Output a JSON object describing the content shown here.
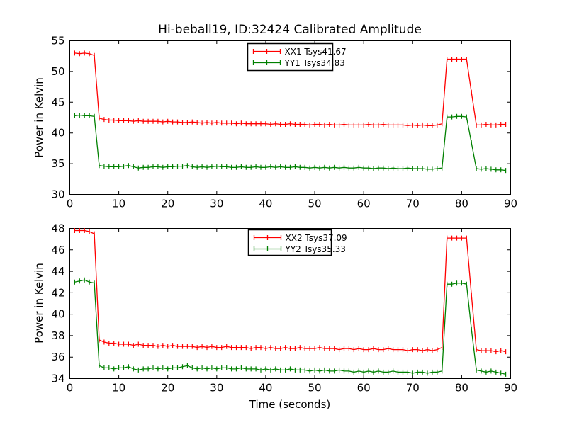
{
  "figure": {
    "title": "Hi-beball19, ID:32424 Calibrated Amplitude",
    "background": "#ffffff"
  },
  "chart_data": [
    {
      "type": "line",
      "title": "Hi-beball19, ID:32424 Calibrated Amplitude",
      "xlabel": "",
      "ylabel": "Power in Kelvin",
      "xlim": [
        0,
        90
      ],
      "ylim": [
        30,
        55
      ],
      "xticks": [
        0,
        10,
        20,
        30,
        40,
        50,
        60,
        70,
        80,
        90
      ],
      "yticks": [
        30,
        35,
        40,
        45,
        50,
        55
      ],
      "grid": false,
      "legend_position": "upper center",
      "marker": "errorbar-tick",
      "x": [
        1,
        2,
        3,
        4,
        5,
        6,
        7,
        8,
        9,
        10,
        11,
        12,
        13,
        14,
        15,
        16,
        17,
        18,
        19,
        20,
        21,
        22,
        23,
        24,
        25,
        26,
        27,
        28,
        29,
        30,
        31,
        32,
        33,
        34,
        35,
        36,
        37,
        38,
        39,
        40,
        41,
        42,
        43,
        44,
        45,
        46,
        47,
        48,
        49,
        50,
        51,
        52,
        53,
        54,
        55,
        56,
        57,
        58,
        59,
        60,
        61,
        62,
        63,
        64,
        65,
        66,
        67,
        68,
        69,
        70,
        71,
        72,
        73,
        74,
        75,
        76,
        77,
        78,
        79,
        80,
        81,
        82,
        83,
        84,
        85,
        86,
        87,
        88,
        89
      ],
      "series": [
        {
          "name": "XX1 Tsys41.67",
          "color": "#ff0000",
          "values": [
            53.0,
            52.9,
            53.0,
            52.9,
            52.6,
            42.4,
            42.2,
            42.1,
            42.1,
            42.0,
            42.0,
            42.0,
            41.9,
            42.0,
            41.9,
            41.9,
            41.9,
            41.9,
            41.8,
            41.9,
            41.8,
            41.8,
            41.7,
            41.7,
            41.8,
            41.7,
            41.6,
            41.7,
            41.6,
            41.7,
            41.6,
            41.6,
            41.6,
            41.5,
            41.6,
            41.5,
            41.5,
            41.5,
            41.5,
            41.5,
            41.4,
            41.5,
            41.4,
            41.4,
            41.5,
            41.4,
            41.4,
            41.4,
            41.3,
            41.4,
            41.4,
            41.3,
            41.4,
            41.3,
            41.3,
            41.4,
            41.3,
            41.3,
            41.3,
            41.3,
            41.4,
            41.3,
            41.3,
            41.4,
            41.3,
            41.3,
            41.3,
            41.3,
            41.2,
            41.3,
            41.2,
            41.3,
            41.2,
            41.2,
            41.3,
            41.5,
            52.0,
            52.0,
            52.0,
            52.0,
            52.0,
            46.6,
            41.3,
            41.3,
            41.4,
            41.3,
            41.3,
            41.4,
            41.4
          ]
        },
        {
          "name": "YY1 Tsys34.83",
          "color": "#008000",
          "values": [
            42.8,
            42.9,
            42.8,
            42.8,
            42.7,
            34.7,
            34.6,
            34.5,
            34.5,
            34.5,
            34.6,
            34.7,
            34.5,
            34.3,
            34.4,
            34.4,
            34.5,
            34.5,
            34.4,
            34.5,
            34.5,
            34.6,
            34.6,
            34.7,
            34.5,
            34.4,
            34.5,
            34.4,
            34.5,
            34.6,
            34.5,
            34.5,
            34.4,
            34.4,
            34.5,
            34.4,
            34.4,
            34.5,
            34.4,
            34.4,
            34.5,
            34.4,
            34.5,
            34.4,
            34.4,
            34.5,
            34.4,
            34.4,
            34.3,
            34.4,
            34.3,
            34.4,
            34.3,
            34.4,
            34.3,
            34.4,
            34.3,
            34.3,
            34.4,
            34.3,
            34.3,
            34.2,
            34.3,
            34.3,
            34.2,
            34.3,
            34.2,
            34.2,
            34.3,
            34.2,
            34.2,
            34.2,
            34.1,
            34.1,
            34.2,
            34.3,
            42.6,
            42.6,
            42.7,
            42.7,
            42.6,
            38.4,
            34.2,
            34.1,
            34.2,
            34.1,
            34.0,
            34.0,
            33.9
          ]
        }
      ]
    },
    {
      "type": "line",
      "title": "",
      "xlabel": "Time (seconds)",
      "ylabel": "Power in Kelvin",
      "xlim": [
        0,
        90
      ],
      "ylim": [
        34,
        48
      ],
      "xticks": [
        0,
        10,
        20,
        30,
        40,
        50,
        60,
        70,
        80,
        90
      ],
      "yticks": [
        34,
        36,
        38,
        40,
        42,
        44,
        46,
        48
      ],
      "grid": false,
      "legend_position": "upper center",
      "marker": "errorbar-tick",
      "x": [
        1,
        2,
        3,
        4,
        5,
        6,
        7,
        8,
        9,
        10,
        11,
        12,
        13,
        14,
        15,
        16,
        17,
        18,
        19,
        20,
        21,
        22,
        23,
        24,
        25,
        26,
        27,
        28,
        29,
        30,
        31,
        32,
        33,
        34,
        35,
        36,
        37,
        38,
        39,
        40,
        41,
        42,
        43,
        44,
        45,
        46,
        47,
        48,
        49,
        50,
        51,
        52,
        53,
        54,
        55,
        56,
        57,
        58,
        59,
        60,
        61,
        62,
        63,
        64,
        65,
        66,
        67,
        68,
        69,
        70,
        71,
        72,
        73,
        74,
        75,
        76,
        77,
        78,
        79,
        80,
        81,
        82,
        83,
        84,
        85,
        86,
        87,
        88,
        89
      ],
      "series": [
        {
          "name": "XX2 Tsys37.09",
          "color": "#ff0000",
          "values": [
            47.8,
            47.8,
            47.8,
            47.7,
            47.5,
            37.6,
            37.4,
            37.3,
            37.3,
            37.2,
            37.2,
            37.2,
            37.1,
            37.2,
            37.1,
            37.1,
            37.1,
            37.0,
            37.1,
            37.0,
            37.1,
            37.0,
            37.0,
            37.0,
            37.0,
            36.9,
            37.0,
            36.9,
            37.0,
            36.9,
            36.9,
            37.0,
            36.9,
            36.9,
            36.9,
            36.9,
            36.8,
            36.9,
            36.9,
            36.8,
            36.9,
            36.8,
            36.8,
            36.9,
            36.8,
            36.8,
            36.9,
            36.8,
            36.8,
            36.8,
            36.9,
            36.8,
            36.8,
            36.8,
            36.7,
            36.8,
            36.8,
            36.7,
            36.8,
            36.7,
            36.7,
            36.8,
            36.7,
            36.7,
            36.8,
            36.7,
            36.7,
            36.7,
            36.6,
            36.7,
            36.7,
            36.6,
            36.7,
            36.6,
            36.7,
            36.9,
            47.1,
            47.1,
            47.1,
            47.1,
            47.1,
            41.8,
            36.7,
            36.6,
            36.6,
            36.6,
            36.5,
            36.6,
            36.5
          ]
        },
        {
          "name": "YY2 Tsys35.33",
          "color": "#008000",
          "values": [
            43.0,
            43.1,
            43.2,
            43.0,
            42.9,
            35.2,
            35.0,
            35.0,
            34.9,
            35.0,
            35.0,
            35.1,
            34.9,
            34.8,
            34.9,
            34.9,
            35.0,
            34.9,
            35.0,
            34.9,
            35.0,
            35.0,
            35.1,
            35.2,
            35.0,
            34.9,
            35.0,
            34.9,
            35.0,
            34.9,
            35.0,
            35.0,
            34.9,
            34.9,
            35.0,
            34.9,
            34.9,
            34.9,
            34.8,
            34.9,
            34.8,
            34.9,
            34.8,
            34.8,
            34.9,
            34.8,
            34.8,
            34.8,
            34.7,
            34.8,
            34.7,
            34.8,
            34.7,
            34.7,
            34.8,
            34.7,
            34.7,
            34.6,
            34.7,
            34.6,
            34.7,
            34.6,
            34.7,
            34.6,
            34.6,
            34.7,
            34.6,
            34.6,
            34.6,
            34.5,
            34.6,
            34.6,
            34.5,
            34.6,
            34.6,
            34.7,
            42.8,
            42.8,
            42.9,
            42.9,
            42.8,
            38.6,
            34.8,
            34.7,
            34.6,
            34.7,
            34.6,
            34.5,
            34.4
          ]
        }
      ]
    }
  ]
}
